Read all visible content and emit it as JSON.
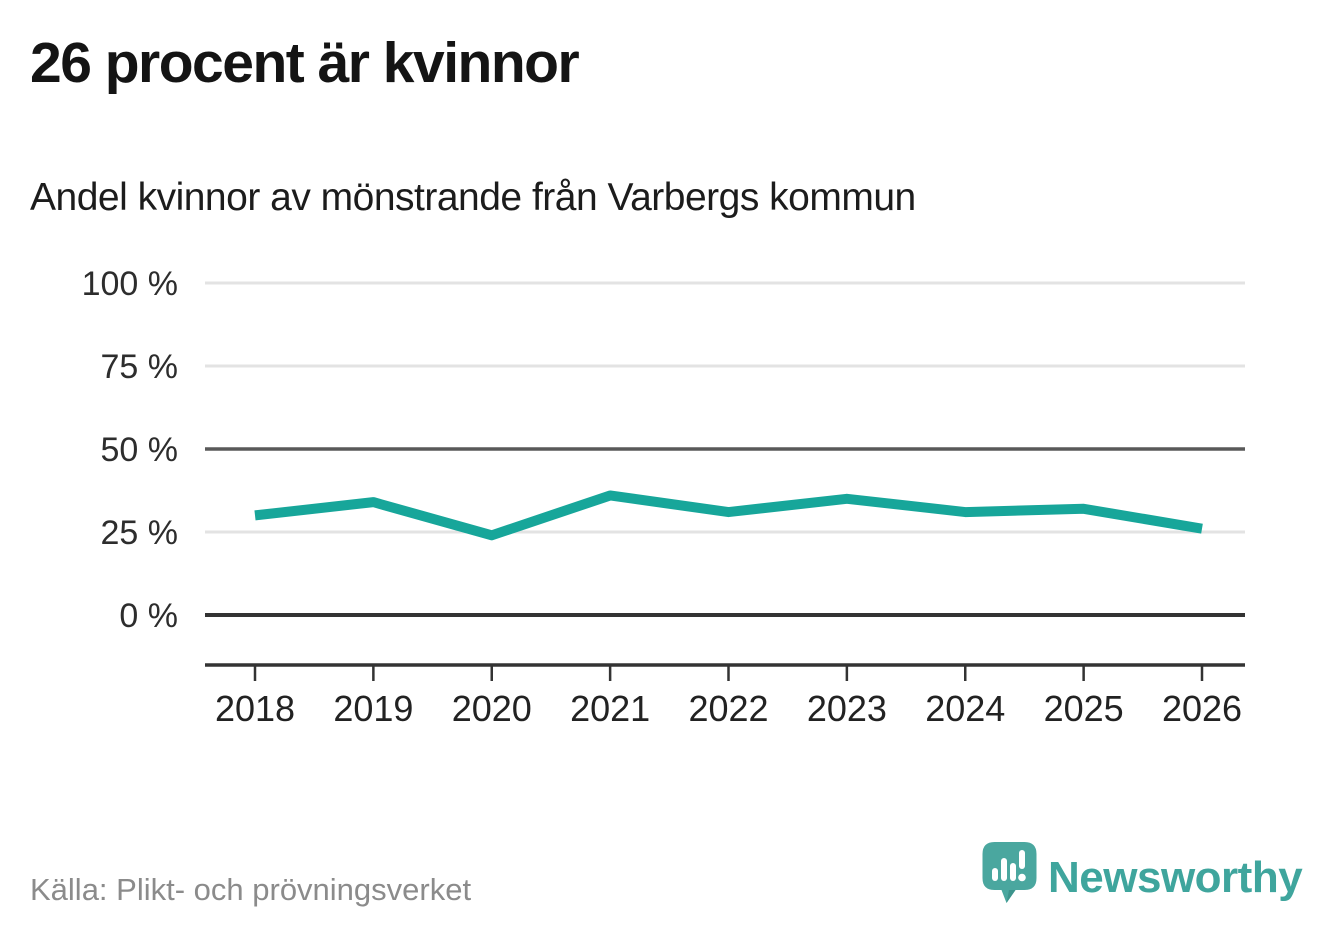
{
  "header": {
    "title": "26 procent är kvinnor",
    "subtitle": "Andel kvinnor av mönstrande från Varbergs kommun"
  },
  "chart_data": {
    "type": "line",
    "title": "26 procent är kvinnor",
    "subtitle": "Andel kvinnor av mönstrande från Varbergs kommun",
    "x": [
      "2018",
      "2019",
      "2020",
      "2021",
      "2022",
      "2023",
      "2024",
      "2025",
      "2026"
    ],
    "series": [
      {
        "name": "Andel kvinnor av mönstrande",
        "values": [
          30,
          34,
          24,
          36,
          31,
          35,
          31,
          32,
          26
        ]
      }
    ],
    "unit": "%",
    "ylim": [
      0,
      100
    ],
    "yticks": [
      0,
      25,
      50,
      75,
      100
    ],
    "ytick_labels": [
      "0 %",
      "25 %",
      "50 %",
      "75 %",
      "100 %"
    ],
    "grid": "horizontal",
    "legend": "none",
    "colors": {
      "line": "#17a69a",
      "gridline_light": "#e3e3e3",
      "gridline_mid": "#595959",
      "axis": "#333333"
    }
  },
  "footer": {
    "source": "Källa: Plikt- och prövningsverket",
    "brand": "Newsworthy",
    "logo_color": "#4aa79f",
    "wordmark_color": "#3fa59d"
  }
}
